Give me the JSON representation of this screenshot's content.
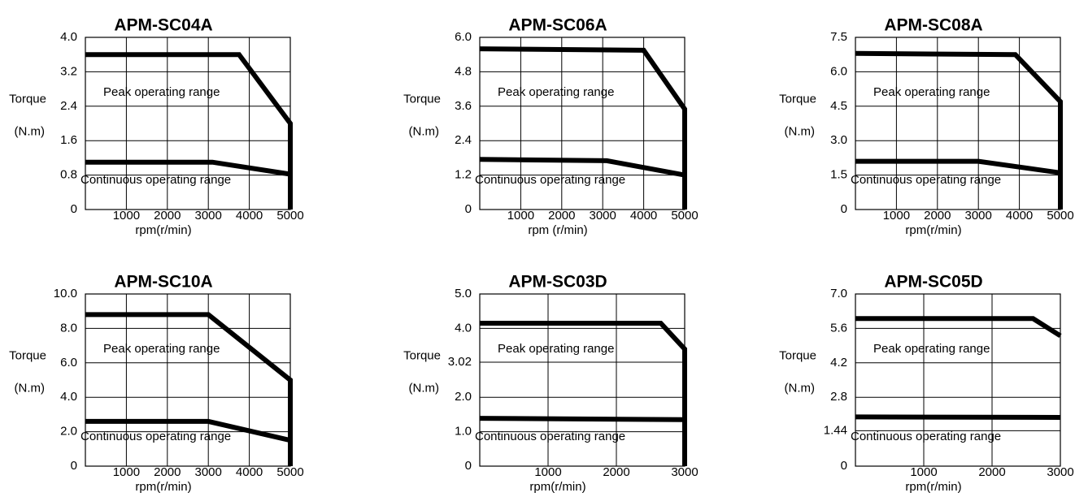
{
  "chart_data": [
    {
      "type": "line",
      "title": "APM-SC04A",
      "ylabel": "Torque",
      "yunit": "(N.m)",
      "xlabel": "rpm(r/min)",
      "xlim": [
        0,
        5000
      ],
      "xticks": [
        1000,
        2000,
        3000,
        4000,
        5000
      ],
      "ylim": [
        0,
        4
      ],
      "yticks": [
        0,
        0.8,
        1.6,
        2.4,
        3.2,
        {
          "value": 4,
          "label": "4.0"
        }
      ],
      "grid": true,
      "series": [
        {
          "name": "Peak operating range",
          "color": "#000000",
          "x": [
            0,
            3750,
            5000,
            5000
          ],
          "values": [
            3.6,
            3.6,
            2.0,
            0
          ]
        },
        {
          "name": "Continuous operating range",
          "color": "#000000",
          "x": [
            0,
            3100,
            5000
          ],
          "values": [
            1.1,
            1.1,
            0.82
          ]
        }
      ]
    },
    {
      "type": "line",
      "title": "APM-SC06A",
      "ylabel": "Torque",
      "yunit": "(N.m)",
      "xlabel": "rpm (r/min)",
      "xlim": [
        0,
        5000
      ],
      "xticks": [
        1000,
        2000,
        3000,
        4000,
        5000
      ],
      "ylim": [
        0,
        6
      ],
      "yticks": [
        0,
        1.2,
        2.4,
        3.6,
        4.8,
        {
          "value": 6,
          "label": "6.0"
        }
      ],
      "grid": true,
      "series": [
        {
          "name": "Peak operating range",
          "color": "#000000",
          "x": [
            0,
            4000,
            5000,
            5000
          ],
          "values": [
            5.6,
            5.55,
            3.5,
            0
          ]
        },
        {
          "name": "Continuous operating range",
          "color": "#000000",
          "x": [
            0,
            3100,
            5000
          ],
          "values": [
            1.75,
            1.7,
            1.2
          ]
        }
      ]
    },
    {
      "type": "line",
      "title": "APM-SC08A",
      "ylabel": "Torque",
      "yunit": "(N.m)",
      "xlabel": "rpm(r/min)",
      "xlim": [
        0,
        5000
      ],
      "xticks": [
        1000,
        2000,
        3000,
        4000,
        5000
      ],
      "ylim": [
        0,
        7.5
      ],
      "yticks": [
        0,
        1.5,
        {
          "value": 3,
          "label": "3.0"
        },
        4.5,
        {
          "value": 6,
          "label": "6.0"
        },
        7.5
      ],
      "grid": true,
      "series": [
        {
          "name": "Peak operating range",
          "color": "#000000",
          "x": [
            0,
            3900,
            5000,
            5000
          ],
          "values": [
            6.8,
            6.75,
            4.7,
            0
          ]
        },
        {
          "name": "Continuous operating range",
          "color": "#000000",
          "x": [
            0,
            3000,
            5000
          ],
          "values": [
            2.1,
            2.1,
            1.6
          ]
        }
      ]
    },
    {
      "type": "line",
      "title": "APM-SC10A",
      "ylabel": "Torque",
      "yunit": "(N.m)",
      "xlabel": "rpm(r/min)",
      "xlim": [
        0,
        5000
      ],
      "xticks": [
        1000,
        2000,
        3000,
        4000,
        5000
      ],
      "ylim": [
        0,
        10
      ],
      "yticks": [
        0,
        {
          "value": 2,
          "label": "2.0"
        },
        {
          "value": 4,
          "label": "4.0"
        },
        {
          "value": 6,
          "label": "6.0"
        },
        {
          "value": 8,
          "label": "8.0"
        },
        {
          "value": 10,
          "label": "10.0"
        }
      ],
      "grid": true,
      "series": [
        {
          "name": "Peak operating range",
          "color": "#000000",
          "x": [
            0,
            3000,
            5000,
            5000
          ],
          "values": [
            8.8,
            8.8,
            5.0,
            0
          ]
        },
        {
          "name": "Continuous operating range",
          "color": "#000000",
          "x": [
            0,
            3000,
            5000
          ],
          "values": [
            2.6,
            2.6,
            1.5
          ]
        }
      ]
    },
    {
      "type": "line",
      "title": "APM-SC03D",
      "ylabel": "Torque",
      "yunit": "(N.m)",
      "xlabel": "rpm(r/min)",
      "xlim": [
        0,
        3000
      ],
      "xticks": [
        1000,
        2000,
        3000
      ],
      "ylim": [
        0,
        5
      ],
      "yticks": [
        0,
        {
          "value": 1,
          "label": "1.0"
        },
        {
          "value": 2,
          "label": "2.0"
        },
        3.02,
        {
          "value": 4,
          "label": "4.0"
        },
        {
          "value": 5,
          "label": "5.0"
        }
      ],
      "grid": true,
      "series": [
        {
          "name": "Peak operating range",
          "color": "#000000",
          "x": [
            0,
            2650,
            3000,
            3000
          ],
          "values": [
            4.15,
            4.15,
            3.4,
            0
          ]
        },
        {
          "name": "Continuous operating range",
          "color": "#000000",
          "x": [
            0,
            3000
          ],
          "values": [
            1.39,
            1.35
          ]
        }
      ]
    },
    {
      "type": "line",
      "title": "APM-SC05D",
      "ylabel": "Torque",
      "yunit": "(N.m)",
      "xlabel": "rpm(r/min)",
      "xlim": [
        0,
        3000
      ],
      "xticks": [
        1000,
        2000,
        3000
      ],
      "ylim": [
        0,
        7
      ],
      "yticks": [
        0,
        1.44,
        2.8,
        4.2,
        5.6,
        {
          "value": 7,
          "label": "7.0"
        }
      ],
      "grid": true,
      "series": [
        {
          "name": "Peak operating range",
          "color": "#000000",
          "x": [
            0,
            2600,
            3000
          ],
          "values": [
            6.0,
            6.0,
            5.3
          ]
        },
        {
          "name": "Continuous operating range",
          "color": "#000000",
          "x": [
            0,
            3000
          ],
          "values": [
            2.0,
            1.98
          ]
        }
      ]
    }
  ]
}
